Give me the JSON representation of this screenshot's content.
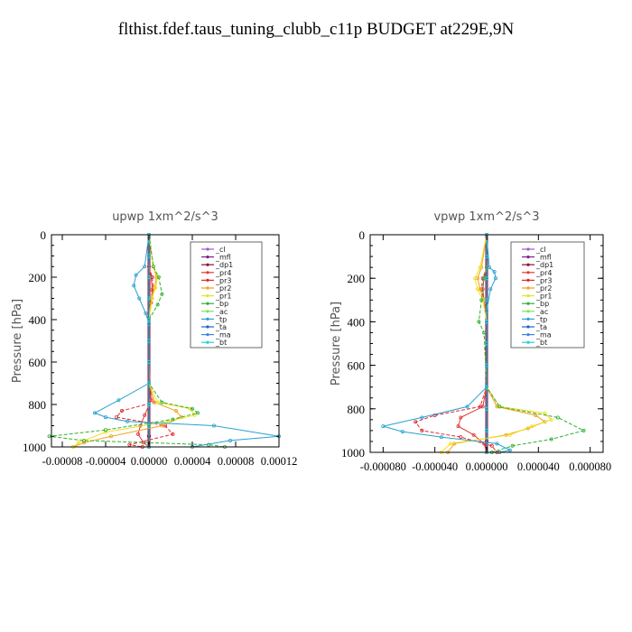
{
  "page": {
    "title": "flthist.fdef.taus_tuning_clubb_c11p  BUDGET at229E,9N"
  },
  "chart_data": [
    {
      "type": "line",
      "title": "upwp   1xm^2/s^3",
      "ylabel": "Pressure [hPa]",
      "xlabel": "",
      "xlim": [
        -9e-05,
        0.00012
      ],
      "ylim": [
        1000,
        0
      ],
      "x_ticks": [
        -8e-05,
        -4e-05,
        0.0,
        4e-05,
        8e-05,
        0.00012
      ],
      "x_tick_labels": [
        "-0.00008",
        "-0.00004",
        "0.00000",
        "0.00004",
        "0.00008",
        "0.00012"
      ],
      "y_ticks": [
        0,
        200,
        400,
        600,
        800,
        1000
      ],
      "y_tick_labels": [
        "0",
        "200",
        "400",
        "600",
        "800",
        "1000"
      ],
      "legend_position": "top-right",
      "series": [
        {
          "name": "_cl",
          "color": "#9b59d0",
          "x": [
            0,
            0,
            0,
            0,
            0,
            0,
            0,
            0,
            0,
            0,
            0,
            0
          ],
          "y": [
            0,
            100,
            200,
            300,
            400,
            500,
            600,
            700,
            800,
            900,
            950,
            1000
          ]
        },
        {
          "name": "_mfl",
          "color": "#7a1f8a",
          "x": [
            0,
            0,
            0,
            0,
            0,
            0,
            0,
            0,
            0,
            0,
            0,
            0
          ],
          "y": [
            0,
            100,
            200,
            300,
            400,
            500,
            600,
            700,
            800,
            900,
            950,
            1000
          ]
        },
        {
          "name": "_dp1",
          "color": "#8a1040",
          "x": [
            0,
            0,
            0,
            0,
            0,
            0,
            0,
            0,
            0,
            0,
            0,
            0
          ],
          "y": [
            0,
            100,
            200,
            300,
            400,
            500,
            600,
            700,
            800,
            900,
            950,
            1000
          ]
        },
        {
          "name": "_pr4",
          "color": "#e03a3a",
          "x": [
            0,
            0,
            2e-06,
            3e-06,
            2e-06,
            0,
            0,
            2e-06,
            -4e-06,
            -8e-06,
            -1e-05,
            -5e-06,
            0
          ],
          "y": [
            0,
            150,
            200,
            260,
            320,
            400,
            600,
            780,
            850,
            900,
            940,
            980,
            1000
          ]
        },
        {
          "name": "_pr3",
          "color": "#e0282f",
          "x": [
            0,
            0,
            3e-06,
            4e-06,
            2e-06,
            0,
            0,
            5e-06,
            -2.5e-05,
            -3e-05,
            1.5e-05,
            2.2e-05,
            -1.8e-05,
            -6e-06
          ],
          "y": [
            0,
            150,
            200,
            250,
            300,
            400,
            700,
            790,
            830,
            860,
            900,
            940,
            990,
            1000
          ]
        },
        {
          "name": "_pr2",
          "color": "#f0a020",
          "x": [
            0,
            4e-06,
            7e-06,
            5e-06,
            2e-06,
            0,
            0,
            5e-06,
            2.5e-05,
            3e-05,
            1.2e-05,
            -3.5e-05,
            -6e-05,
            -7e-05
          ],
          "y": [
            0,
            150,
            200,
            250,
            300,
            400,
            700,
            790,
            830,
            860,
            900,
            950,
            980,
            1000
          ]
        },
        {
          "name": "_pr1",
          "color": "#f0e020",
          "x": [
            0,
            4e-06,
            8e-06,
            6e-06,
            3e-06,
            0,
            0,
            8e-06,
            3.8e-05,
            4.2e-05,
            1.8e-05,
            -4e-05,
            -6.5e-05,
            -7e-05
          ],
          "y": [
            0,
            150,
            200,
            250,
            300,
            400,
            700,
            790,
            820,
            850,
            880,
            930,
            980,
            1000
          ]
        },
        {
          "name": "_bp",
          "color": "#30b030",
          "x": [
            0,
            4e-06,
            9e-06,
            1.2e-05,
            8e-06,
            0,
            0,
            1.2e-05,
            4e-05,
            4.5e-05,
            2.2e-05,
            -4e-05,
            -9.2e-05,
            -6e-05,
            5.5e-05,
            7e-05
          ],
          "y": [
            0,
            150,
            200,
            280,
            330,
            400,
            700,
            790,
            820,
            840,
            870,
            920,
            950,
            970,
            990,
            1000
          ]
        },
        {
          "name": "_ac",
          "color": "#80e060",
          "x": [
            0,
            0,
            0,
            0,
            0,
            0,
            0,
            0,
            0,
            0,
            0
          ],
          "y": [
            0,
            100,
            200,
            300,
            400,
            500,
            600,
            700,
            800,
            900,
            1000
          ]
        },
        {
          "name": "_tp",
          "color": "#2aa0d0",
          "x": [
            0,
            -4e-06,
            -1.2e-05,
            -1.4e-05,
            -9e-06,
            -3e-06,
            0,
            0,
            -2.8e-05,
            -5e-05,
            -4e-05,
            -2e-05,
            6e-05,
            0.00012,
            7.5e-05,
            4e-05
          ],
          "y": [
            0,
            150,
            190,
            240,
            300,
            370,
            420,
            700,
            780,
            840,
            860,
            880,
            900,
            950,
            970,
            1000
          ]
        },
        {
          "name": "_ta",
          "color": "#2060d0",
          "x": [
            0,
            0,
            0,
            0,
            0,
            0,
            0,
            0,
            0,
            0,
            0
          ],
          "y": [
            0,
            100,
            200,
            300,
            400,
            500,
            600,
            700,
            800,
            900,
            1000
          ]
        },
        {
          "name": "_ma",
          "color": "#3a8ad8",
          "x": [
            0,
            0,
            0,
            0,
            0,
            0,
            0,
            0,
            0,
            0,
            0
          ],
          "y": [
            0,
            100,
            200,
            300,
            400,
            500,
            600,
            700,
            800,
            900,
            1000
          ]
        },
        {
          "name": "_bt",
          "color": "#20d0e0",
          "x": [
            0,
            0,
            0,
            0,
            0,
            0,
            0,
            0,
            0,
            0,
            0
          ],
          "y": [
            0,
            100,
            200,
            300,
            400,
            500,
            600,
            700,
            800,
            900,
            1000
          ]
        }
      ]
    },
    {
      "type": "line",
      "title": "vpwp   1xm^2/s^3",
      "ylabel": "Pressure [hPa]",
      "xlabel": "",
      "xlim": [
        -9e-05,
        9e-05
      ],
      "ylim": [
        1000,
        0
      ],
      "x_ticks": [
        -8e-05,
        -4e-05,
        0.0,
        4e-05,
        8e-05
      ],
      "x_tick_labels": [
        "-0.000080",
        "-0.000040",
        "0.000000",
        "0.000040",
        "0.000080"
      ],
      "y_ticks": [
        0,
        200,
        400,
        600,
        800,
        1000
      ],
      "y_tick_labels": [
        "0",
        "200",
        "400",
        "600",
        "800",
        "1000"
      ],
      "legend_position": "top-right",
      "series": [
        {
          "name": "_cl",
          "color": "#9b59d0",
          "x": [
            0,
            0,
            0,
            0,
            0,
            0,
            0,
            0,
            0,
            0,
            0,
            0
          ],
          "y": [
            0,
            100,
            200,
            300,
            400,
            500,
            600,
            700,
            800,
            900,
            950,
            1000
          ]
        },
        {
          "name": "_mfl",
          "color": "#7a1f8a",
          "x": [
            0,
            0,
            0,
            0,
            0,
            0,
            0,
            0,
            0,
            0,
            0,
            0
          ],
          "y": [
            0,
            100,
            200,
            300,
            400,
            500,
            600,
            700,
            800,
            900,
            950,
            1000
          ]
        },
        {
          "name": "_dp1",
          "color": "#8a1040",
          "x": [
            0,
            0,
            0,
            0,
            0,
            0,
            0,
            0,
            0,
            0,
            0,
            0
          ],
          "y": [
            0,
            100,
            200,
            300,
            400,
            500,
            600,
            700,
            800,
            900,
            950,
            1000
          ]
        },
        {
          "name": "_pr4",
          "color": "#e03a3a",
          "x": [
            0,
            0,
            -2e-06,
            -3e-06,
            -2e-06,
            0,
            0,
            -3e-06,
            -2e-05,
            -2.2e-05,
            -1e-05,
            -2e-06,
            0
          ],
          "y": [
            0,
            150,
            200,
            250,
            300,
            400,
            700,
            790,
            840,
            880,
            920,
            960,
            1000
          ]
        },
        {
          "name": "_pr3",
          "color": "#e0282f",
          "x": [
            0,
            0,
            -3e-06,
            -4e-06,
            -2e-06,
            0,
            0,
            -5e-06,
            -4e-05,
            -5.5e-05,
            -5e-05,
            -2e-05,
            4e-06,
            8e-06
          ],
          "y": [
            0,
            150,
            200,
            250,
            300,
            400,
            700,
            790,
            830,
            860,
            900,
            930,
            970,
            1000
          ]
        },
        {
          "name": "_pr2",
          "color": "#f0a020",
          "x": [
            0,
            -4e-06,
            -7e-06,
            -5e-06,
            -2e-06,
            0,
            0,
            8e-06,
            3.8e-05,
            4.5e-05,
            3.2e-05,
            1.5e-05,
            -2.5e-05,
            -3e-05
          ],
          "y": [
            0,
            150,
            200,
            250,
            300,
            400,
            700,
            790,
            830,
            860,
            890,
            920,
            960,
            1000
          ]
        },
        {
          "name": "_pr1",
          "color": "#f0e020",
          "x": [
            0,
            -5e-06,
            -9e-06,
            -7e-06,
            -3e-06,
            0,
            0,
            1e-05,
            4.5e-05,
            5e-05,
            3.5e-05,
            1.8e-05,
            -2.8e-05,
            -3.5e-05
          ],
          "y": [
            0,
            150,
            200,
            250,
            300,
            400,
            700,
            790,
            820,
            850,
            880,
            920,
            960,
            1000
          ]
        },
        {
          "name": "_bp",
          "color": "#30b030",
          "x": [
            0,
            0,
            -2e-06,
            -4e-06,
            -6e-06,
            -2e-06,
            0,
            1e-05,
            5.5e-05,
            7.5e-05,
            5e-05,
            2e-05,
            4e-06
          ],
          "y": [
            0,
            150,
            200,
            300,
            400,
            450,
            700,
            790,
            840,
            900,
            940,
            970,
            1000
          ]
        },
        {
          "name": "_ac",
          "color": "#80e060",
          "x": [
            0,
            0,
            0,
            0,
            0,
            0,
            0,
            0,
            0,
            0,
            0
          ],
          "y": [
            0,
            100,
            200,
            300,
            400,
            500,
            600,
            700,
            800,
            900,
            1000
          ]
        },
        {
          "name": "_tp",
          "color": "#2aa0d0",
          "x": [
            0,
            2e-06,
            6e-06,
            7e-06,
            3e-06,
            0,
            0,
            -1.5e-05,
            -5e-05,
            -8e-05,
            -6.5e-05,
            -3.5e-05,
            8e-06,
            1.8e-05,
            1e-05
          ],
          "y": [
            0,
            150,
            170,
            200,
            250,
            350,
            700,
            790,
            840,
            880,
            905,
            930,
            960,
            990,
            1000
          ]
        },
        {
          "name": "_ta",
          "color": "#2060d0",
          "x": [
            0,
            0,
            0,
            0,
            0,
            0,
            0,
            0,
            0,
            0,
            0
          ],
          "y": [
            0,
            100,
            200,
            300,
            400,
            500,
            600,
            700,
            800,
            900,
            1000
          ]
        },
        {
          "name": "_ma",
          "color": "#3a8ad8",
          "x": [
            0,
            0,
            0,
            0,
            0,
            0,
            0,
            0,
            0,
            0,
            0
          ],
          "y": [
            0,
            100,
            200,
            300,
            400,
            500,
            600,
            700,
            800,
            900,
            1000
          ]
        },
        {
          "name": "_bt",
          "color": "#20d0e0",
          "x": [
            0,
            0,
            0,
            0,
            0,
            0,
            0,
            0,
            0,
            0,
            0
          ],
          "y": [
            0,
            100,
            200,
            300,
            400,
            500,
            600,
            700,
            800,
            900,
            1000
          ]
        }
      ]
    }
  ]
}
